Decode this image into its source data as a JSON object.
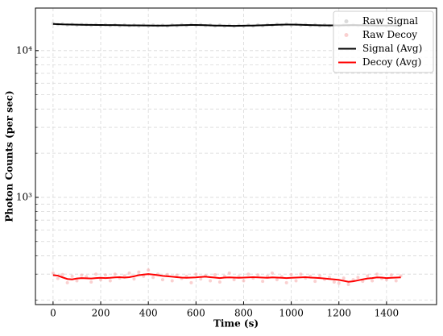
{
  "chart_data": {
    "type": "line",
    "xlabel": "Time (s)",
    "ylabel": "Photon Counts (per sec)",
    "x": [
      0,
      20,
      40,
      60,
      80,
      100,
      120,
      140,
      160,
      180,
      200,
      220,
      240,
      260,
      280,
      300,
      320,
      340,
      360,
      380,
      400,
      420,
      440,
      460,
      480,
      500,
      520,
      540,
      560,
      580,
      600,
      620,
      640,
      660,
      680,
      700,
      720,
      740,
      760,
      780,
      800,
      820,
      840,
      860,
      880,
      900,
      920,
      940,
      960,
      980,
      1000,
      1020,
      1040,
      1060,
      1080,
      1100,
      1120,
      1140,
      1160,
      1180,
      1200,
      1220,
      1240,
      1260,
      1280,
      1300,
      1320,
      1340,
      1360,
      1380,
      1400,
      1420,
      1440,
      1460
    ],
    "series": [
      {
        "name": "Raw Signal",
        "kind": "scatter",
        "color": "#bdbdbd",
        "values": [
          15300,
          15050,
          15250,
          14950,
          15150,
          14900,
          15100,
          15050,
          14850,
          15100,
          14850,
          15050,
          14800,
          15000,
          14750,
          15000,
          14800,
          14950,
          14700,
          15000,
          14700,
          14950,
          14750,
          14900,
          14700,
          15000,
          14750,
          15050,
          14800,
          15100,
          14850,
          15050,
          14800,
          14950,
          14700,
          14950,
          14650,
          14900,
          14650,
          14900,
          14650,
          14950,
          14700,
          15000,
          14750,
          15050,
          14850,
          15150,
          14900,
          15200,
          14900,
          15150,
          14850,
          15100,
          14800,
          15050,
          14750,
          15000,
          14750,
          14950,
          14750,
          15000,
          14800,
          15050,
          14750,
          15000,
          14700,
          14950,
          14700,
          14950,
          14650,
          14950,
          14700,
          14900
        ]
      },
      {
        "name": "Raw Decoy",
        "kind": "scatter",
        "color": "#f5a9a9",
        "values": [
          305,
          280,
          298,
          262,
          290,
          270,
          295,
          288,
          265,
          300,
          275,
          296,
          270,
          300,
          282,
          292,
          305,
          278,
          310,
          290,
          320,
          285,
          300,
          275,
          298,
          270,
          295,
          280,
          290,
          262,
          300,
          278,
          292,
          270,
          297,
          265,
          290,
          305,
          275,
          288,
          270,
          300,
          282,
          296,
          268,
          290,
          305,
          275,
          288,
          262,
          298,
          270,
          300,
          282,
          290,
          268,
          292,
          276,
          285,
          265,
          260,
          282,
          255,
          275,
          285,
          268,
          292,
          270,
          300,
          280,
          275,
          296,
          270,
          292
        ]
      },
      {
        "name": "Signal (Avg)",
        "kind": "line",
        "color": "#000000",
        "values": [
          15200,
          15150,
          15100,
          15080,
          15050,
          15020,
          15000,
          14980,
          14970,
          14960,
          14950,
          14940,
          14930,
          14920,
          14900,
          14880,
          14870,
          14860,
          14850,
          14840,
          14830,
          14820,
          14810,
          14800,
          14820,
          14850,
          14880,
          14900,
          14920,
          14950,
          14960,
          14940,
          14900,
          14860,
          14820,
          14800,
          14780,
          14760,
          14750,
          14760,
          14780,
          14800,
          14820,
          14850,
          14880,
          14920,
          14960,
          15000,
          15030,
          15050,
          15050,
          15030,
          15000,
          14960,
          14920,
          14900,
          14880,
          14870,
          14860,
          14850,
          14860,
          14880,
          14900,
          14920,
          14900,
          14880,
          14860,
          14840,
          14820,
          14810,
          14800,
          14800,
          14810,
          14800
        ]
      },
      {
        "name": "Decoy (Avg)",
        "kind": "line",
        "color": "#ff0000",
        "values": [
          295,
          293,
          285,
          278,
          276,
          280,
          282,
          281,
          280,
          282,
          283,
          282,
          283,
          285,
          286,
          284,
          286,
          290,
          295,
          298,
          300,
          298,
          295,
          292,
          290,
          288,
          286,
          284,
          283,
          284,
          285,
          287,
          288,
          286,
          284,
          282,
          284,
          285,
          284,
          283,
          284,
          285,
          286,
          285,
          284,
          283,
          285,
          284,
          283,
          282,
          283,
          284,
          285,
          286,
          284,
          283,
          282,
          280,
          278,
          276,
          274,
          270,
          266,
          268,
          272,
          276,
          280,
          282,
          285,
          284,
          282,
          283,
          284,
          285
        ]
      }
    ],
    "xlim": [
      -74,
      1610
    ],
    "xticks": [
      0,
      200,
      400,
      600,
      800,
      1000,
      1200,
      1400
    ],
    "ylim": [
      186,
      19500
    ],
    "log_y": true,
    "yticks": [
      {
        "value": 1000,
        "label": "10³"
      },
      {
        "value": 10000,
        "label": "10⁴"
      }
    ],
    "yminorticks": [
      200,
      300,
      400,
      500,
      600,
      700,
      800,
      900,
      2000,
      3000,
      4000,
      5000,
      6000,
      7000,
      8000,
      9000
    ],
    "grid": true,
    "legend": "upper right"
  }
}
